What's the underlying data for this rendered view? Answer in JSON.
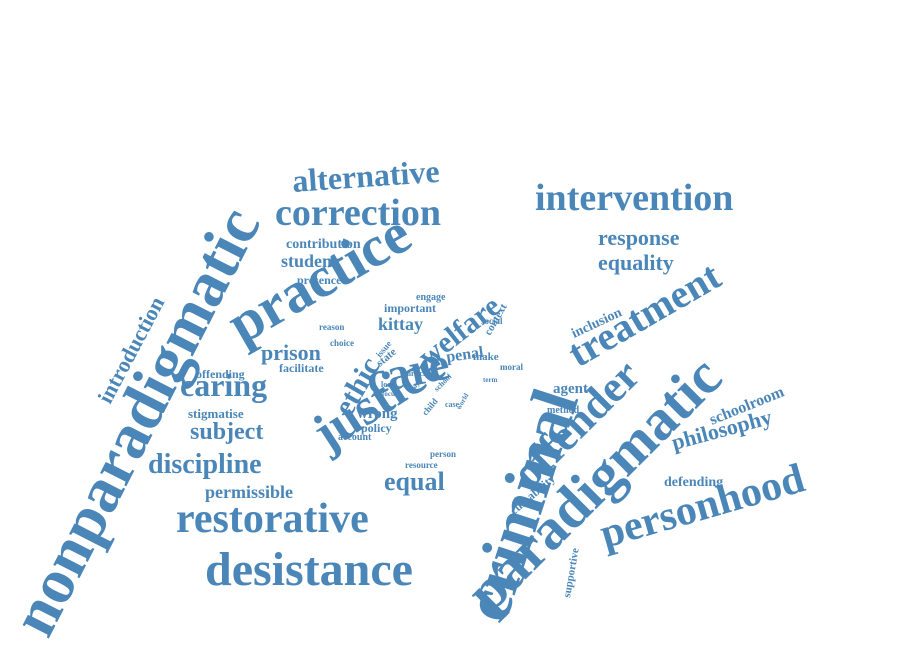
{
  "color": "#4a86b8",
  "words": [
    {
      "text": "nonparadigmatic"
    },
    {
      "text": "paradigmatic"
    },
    {
      "text": "criminal"
    },
    {
      "text": "practice"
    },
    {
      "text": "justice"
    },
    {
      "text": "care"
    },
    {
      "text": "restorative"
    },
    {
      "text": "desistance"
    },
    {
      "text": "personhood"
    },
    {
      "text": "offender"
    },
    {
      "text": "treatment"
    },
    {
      "text": "intervention"
    },
    {
      "text": "correction"
    },
    {
      "text": "alternative"
    },
    {
      "text": "caring"
    },
    {
      "text": "discipline"
    },
    {
      "text": "welfare"
    },
    {
      "text": "ethic"
    },
    {
      "text": "subject"
    },
    {
      "text": "equal"
    },
    {
      "text": "prison"
    },
    {
      "text": "response"
    },
    {
      "text": "equality"
    },
    {
      "text": "philosophy"
    },
    {
      "text": "introduction"
    },
    {
      "text": "permissible"
    },
    {
      "text": "schoolroom"
    },
    {
      "text": "kittay"
    },
    {
      "text": "student"
    },
    {
      "text": "contribution"
    },
    {
      "text": "defending"
    },
    {
      "text": "agent"
    },
    {
      "text": "penal"
    },
    {
      "text": "wrong"
    },
    {
      "text": "stigmatise"
    },
    {
      "text": "inclusion"
    },
    {
      "text": "presence"
    },
    {
      "text": "important"
    },
    {
      "text": "offending"
    },
    {
      "text": "facilitate"
    },
    {
      "text": "policy"
    },
    {
      "text": "culpability"
    },
    {
      "text": "supportive"
    },
    {
      "text": "engage"
    },
    {
      "text": "reason"
    },
    {
      "text": "choice"
    },
    {
      "text": "context"
    },
    {
      "text": "social"
    },
    {
      "text": "state"
    },
    {
      "text": "issue"
    },
    {
      "text": "make"
    },
    {
      "text": "moral"
    },
    {
      "text": "lock"
    },
    {
      "text": "focus"
    },
    {
      "text": "article"
    },
    {
      "text": "school"
    },
    {
      "text": "way"
    },
    {
      "text": "account"
    },
    {
      "text": "resource"
    },
    {
      "text": "person"
    },
    {
      "text": "method"
    },
    {
      "text": "term"
    },
    {
      "text": "child"
    },
    {
      "text": "case"
    },
    {
      "text": "world"
    }
  ]
}
